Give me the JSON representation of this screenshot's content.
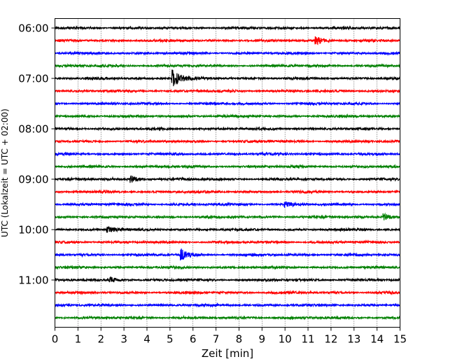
{
  "chart_data": {
    "type": "line",
    "title": "",
    "xlabel": "Zeit  [min]",
    "ylabel": "UTC (Lokalzeit = UTC + 02:00)",
    "xlim": [
      0,
      15
    ],
    "x_ticks": [
      "0",
      "1",
      "2",
      "3",
      "4",
      "5",
      "6",
      "7",
      "8",
      "9",
      "10",
      "11",
      "12",
      "13",
      "14",
      "15"
    ],
    "y_ticks": [
      "06:00",
      "07:00",
      "08:00",
      "09:00",
      "10:00",
      "11:00"
    ],
    "grid": "vertical dotted",
    "trace_colors": [
      "#000000",
      "#ff0000",
      "#0000ff",
      "#008000"
    ],
    "traces": [
      {
        "start": "06:00",
        "color": "#000000"
      },
      {
        "start": "06:15",
        "color": "#ff0000"
      },
      {
        "start": "06:30",
        "color": "#0000ff"
      },
      {
        "start": "06:45",
        "color": "#008000"
      },
      {
        "start": "07:00",
        "color": "#000000"
      },
      {
        "start": "07:15",
        "color": "#ff0000"
      },
      {
        "start": "07:30",
        "color": "#0000ff"
      },
      {
        "start": "07:45",
        "color": "#008000"
      },
      {
        "start": "08:00",
        "color": "#000000"
      },
      {
        "start": "08:15",
        "color": "#ff0000"
      },
      {
        "start": "08:30",
        "color": "#0000ff"
      },
      {
        "start": "08:45",
        "color": "#008000"
      },
      {
        "start": "09:00",
        "color": "#000000"
      },
      {
        "start": "09:15",
        "color": "#ff0000"
      },
      {
        "start": "09:30",
        "color": "#0000ff"
      },
      {
        "start": "09:45",
        "color": "#008000"
      },
      {
        "start": "10:00",
        "color": "#000000"
      },
      {
        "start": "10:15",
        "color": "#ff0000"
      },
      {
        "start": "10:30",
        "color": "#0000ff"
      },
      {
        "start": "10:45",
        "color": "#008000"
      },
      {
        "start": "11:00",
        "color": "#000000"
      },
      {
        "start": "11:15",
        "color": "#ff0000"
      },
      {
        "start": "11:30",
        "color": "#0000ff"
      },
      {
        "start": "11:45",
        "color": "#008000"
      }
    ],
    "events": [
      {
        "trace_start": "06:15",
        "minute": 11.35,
        "relative_amplitude": 2.5
      },
      {
        "trace_start": "07:00",
        "minute": 5.1,
        "relative_amplitude": 5.5
      },
      {
        "trace_start": "09:00",
        "minute": 3.3,
        "relative_amplitude": 2.0
      },
      {
        "trace_start": "09:30",
        "minute": 10.0,
        "relative_amplitude": 1.8
      },
      {
        "trace_start": "09:45",
        "minute": 14.3,
        "relative_amplitude": 2.0
      },
      {
        "trace_start": "10:00",
        "minute": 2.3,
        "relative_amplitude": 1.8
      },
      {
        "trace_start": "10:30",
        "minute": 5.5,
        "relative_amplitude": 3.8
      },
      {
        "trace_start": "11:00",
        "minute": 2.4,
        "relative_amplitude": 1.8
      }
    ]
  }
}
